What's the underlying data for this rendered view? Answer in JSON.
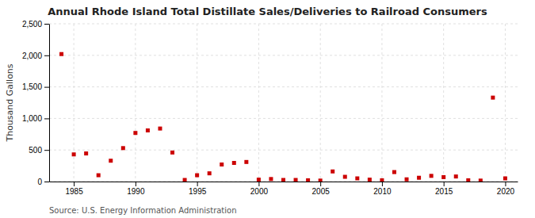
{
  "chart_data": {
    "type": "scatter",
    "title": "Annual Rhode Island Total Distillate Sales/Deliveries to Railroad Consumers",
    "ylabel": "Thousand Gallons",
    "source": "Source: U.S. Energy Information Administration",
    "x": [
      1984,
      1985,
      1986,
      1987,
      1988,
      1989,
      1990,
      1991,
      1992,
      1993,
      1994,
      1995,
      1996,
      1997,
      1998,
      1999,
      2000,
      2001,
      2002,
      2003,
      2004,
      2005,
      2006,
      2007,
      2008,
      2009,
      2010,
      2011,
      2012,
      2013,
      2014,
      2015,
      2016,
      2017,
      2018,
      2019,
      2020
    ],
    "values": [
      2020,
      430,
      445,
      100,
      330,
      530,
      770,
      810,
      840,
      460,
      25,
      100,
      130,
      270,
      295,
      310,
      30,
      40,
      25,
      25,
      20,
      15,
      160,
      75,
      50,
      30,
      20,
      150,
      35,
      60,
      90,
      70,
      80,
      20,
      15,
      1330,
      50
    ],
    "color": "#cc0000",
    "marker": "square",
    "xlim": [
      1983,
      2021
    ],
    "xticks": [
      1985,
      1990,
      1995,
      2000,
      2005,
      2010,
      2015,
      2020
    ],
    "ylim": [
      0,
      2500
    ],
    "yticks": [
      0,
      500,
      {
        "value": 1000,
        "label": "1,000"
      },
      {
        "value": 1500,
        "label": "1,500"
      },
      {
        "value": 2000,
        "label": "2,000"
      },
      {
        "value": 2500,
        "label": "2,500"
      }
    ],
    "grid": true
  }
}
